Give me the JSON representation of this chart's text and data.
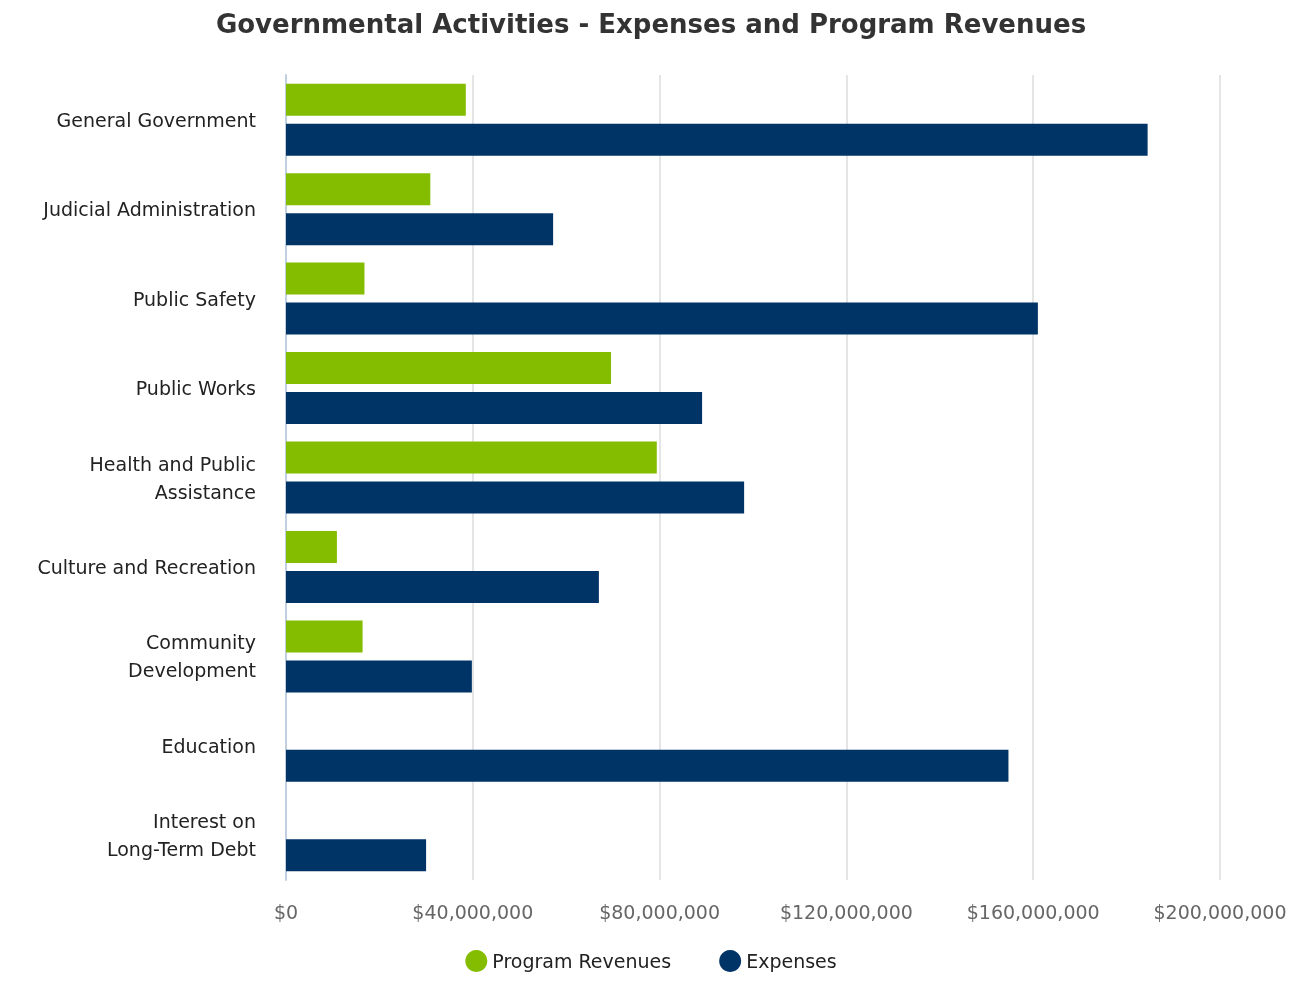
{
  "chart_data": {
    "type": "bar",
    "orientation": "horizontal",
    "title": "Governmental Activities - Expenses and Program Revenues",
    "categories": [
      "General Government",
      "Judicial Administration",
      "Public Safety",
      "Public Works",
      "Health and Public\nAssistance",
      "Culture and Recreation",
      "Community\nDevelopment",
      "Education",
      "Interest on\nLong-Term Debt"
    ],
    "series": [
      {
        "name": "Program Revenues",
        "color": "#84bd00",
        "values": [
          38500000,
          30900000,
          16800000,
          69600000,
          79400000,
          10900000,
          16400000,
          null,
          null
        ]
      },
      {
        "name": "Expenses",
        "color": "#003366",
        "values": [
          184500000,
          57200000,
          161000000,
          89100000,
          98100000,
          67000000,
          39800000,
          154700000,
          30000000
        ]
      }
    ],
    "xlim": [
      0,
      200000000
    ],
    "xticks": [
      {
        "value": 0,
        "label": "$0"
      },
      {
        "value": 40000000,
        "label": "$40,000,000"
      },
      {
        "value": 80000000,
        "label": "$80,000,000"
      },
      {
        "value": 120000000,
        "label": "$120,000,000"
      },
      {
        "value": 160000000,
        "label": "$160,000,000"
      },
      {
        "value": 200000000,
        "label": "$200,000,000"
      }
    ],
    "grid": "x",
    "legend": "bottom"
  }
}
